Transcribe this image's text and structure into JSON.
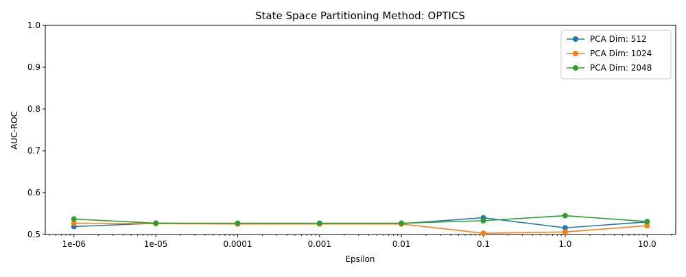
{
  "chart_data": {
    "type": "line",
    "title": "State Space Partitioning Method: OPTICS",
    "xlabel": "Epsilon",
    "ylabel": "AUC-ROC",
    "x_scale": "log",
    "x": [
      1e-06,
      1e-05,
      0.0001,
      0.001,
      0.01,
      0.1,
      1.0,
      10.0
    ],
    "x_tick_labels": [
      "1e-06",
      "1e-05",
      "0.0001",
      "0.001",
      "0.01",
      "0.1",
      "1.0",
      "10.0"
    ],
    "ylim": [
      0.5,
      1.0
    ],
    "y_ticks": [
      "0.5",
      "0.6",
      "0.7",
      "0.8",
      "0.9",
      "1.0"
    ],
    "grid": false,
    "legend_position": "top-right",
    "series": [
      {
        "name": "PCA Dim: 512",
        "color": "#1f77b4",
        "values": [
          0.519,
          0.527,
          0.526,
          0.526,
          0.526,
          0.54,
          0.516,
          0.53
        ]
      },
      {
        "name": "PCA Dim: 1024",
        "color": "#ff7f0e",
        "values": [
          0.527,
          0.526,
          0.525,
          0.525,
          0.525,
          0.503,
          0.506,
          0.521
        ]
      },
      {
        "name": "PCA Dim: 2048",
        "color": "#2ca02c",
        "values": [
          0.537,
          0.527,
          0.527,
          0.527,
          0.527,
          0.533,
          0.545,
          0.531
        ]
      }
    ]
  }
}
